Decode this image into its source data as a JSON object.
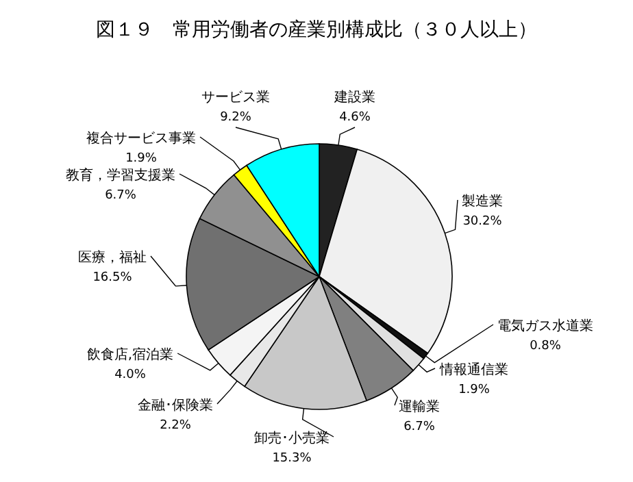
{
  "chart_data": {
    "type": "pie",
    "title": "図１９　常用労働者の産業別構成比（３０人以上）",
    "categories": [
      "建設業",
      "製造業",
      "電気ガス水道業",
      "情報通信業",
      "運輸業",
      "卸売･小売業",
      "金融･保険業",
      "飲食店,宿泊業",
      "医療，福祉",
      "教育，学習支援業",
      "複合サービス事業",
      "サービス業"
    ],
    "values": [
      4.6,
      30.2,
      0.8,
      1.9,
      6.7,
      15.3,
      2.2,
      4.0,
      16.5,
      6.7,
      1.9,
      9.2
    ],
    "colors": [
      "#222222",
      "#f0f0f0",
      "#111111",
      "#e0e0e0",
      "#808080",
      "#c8c8c8",
      "#e8e8e8",
      "#f4f4f4",
      "#707070",
      "#909090",
      "#ffff00",
      "#00ffff"
    ],
    "value_labels": [
      "4.6%",
      "30.2%",
      "0.8%",
      "1.9%",
      "6.7%",
      "15.3%",
      "2.2%",
      "4.0%",
      "16.5%",
      "6.7%",
      "1.9%",
      "9.2%"
    ]
  }
}
